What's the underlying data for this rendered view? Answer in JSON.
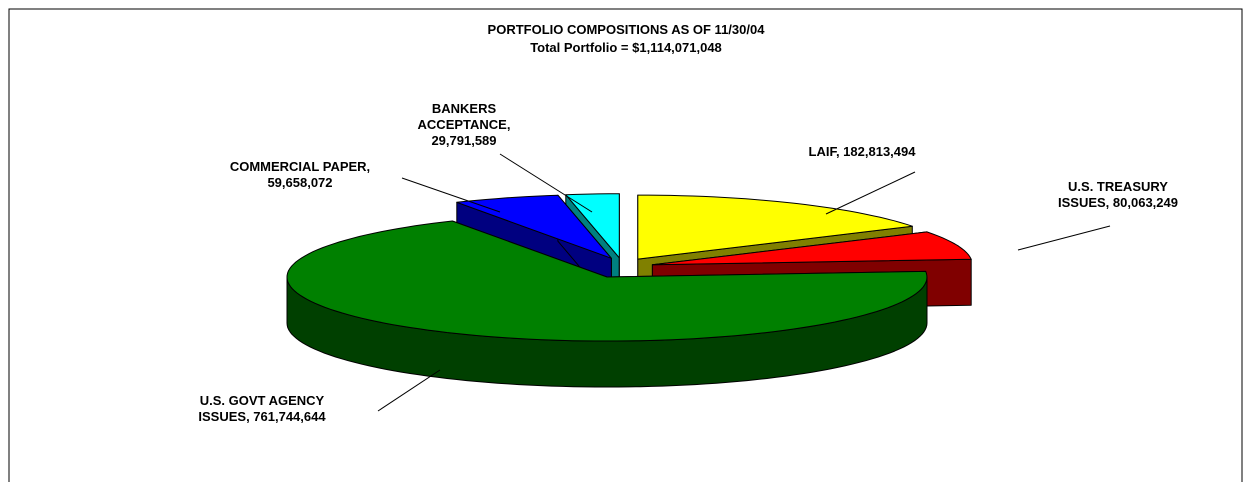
{
  "chart_data": {
    "type": "pie3d",
    "title": "PORTFOLIO COMPOSITIONS AS OF 11/30/04",
    "subtitle": "Total Portfolio = $1,114,071,048",
    "values": [
      182813494,
      80063249,
      761744644,
      59658072,
      29791589
    ],
    "value_labels": [
      "LAIF, 182,813,494",
      "U.S. TREASURY ISSUES, 80,063,249",
      "U.S. GOVT AGENCY ISSUES, 761,744,644",
      "COMMERCIAL PAPER, 59,658,072",
      "BANKERS ACCEPTANCE, 29,791,589"
    ],
    "colors": [
      "#ffff00",
      "#ff0000",
      "#008000",
      "#0000ff",
      "#00ffff"
    ],
    "side_colors": [
      "#808000",
      "#800000",
      "#004000",
      "#000080",
      "#008080"
    ]
  }
}
